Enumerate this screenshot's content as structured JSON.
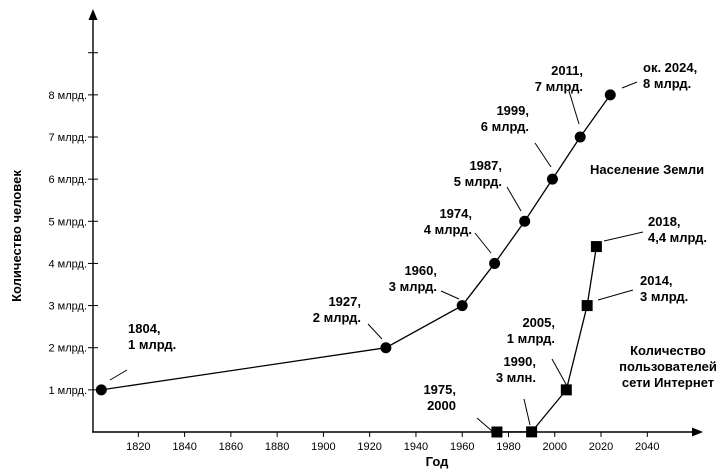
{
  "chart_data": {
    "type": "line",
    "title": "",
    "xlabel": "Год",
    "ylabel": "Количество человек",
    "x_ticks": [
      1820,
      1840,
      1860,
      1880,
      1900,
      1920,
      1940,
      1960,
      1980,
      2000,
      2020,
      2040
    ],
    "y_ticks": [
      {
        "value": 1,
        "label": "1 млрд."
      },
      {
        "value": 2,
        "label": "2 млрд."
      },
      {
        "value": 3,
        "label": "3 млрд."
      },
      {
        "value": 4,
        "label": "4 млрд."
      },
      {
        "value": 5,
        "label": "5 млрд."
      },
      {
        "value": 6,
        "label": "6 млрд."
      },
      {
        "value": 7,
        "label": "7 млрд."
      },
      {
        "value": 8,
        "label": "8 млрд."
      }
    ],
    "xlim": [
      1803,
      2055
    ],
    "ylim": [
      0,
      9.8
    ],
    "grid": false,
    "series": [
      {
        "name": "Население Земли",
        "marker": "circle",
        "points": [
          {
            "x": 1804,
            "y": 1,
            "label": [
              "1804,",
              "1 млрд."
            ]
          },
          {
            "x": 1927,
            "y": 2,
            "label": [
              "1927,",
              "2 млрд."
            ]
          },
          {
            "x": 1960,
            "y": 3,
            "label": [
              "1960,",
              "3 млрд."
            ]
          },
          {
            "x": 1974,
            "y": 4,
            "label": [
              "1974,",
              "4 млрд."
            ]
          },
          {
            "x": 1987,
            "y": 5,
            "label": [
              "1987,",
              "5 млрд."
            ]
          },
          {
            "x": 1999,
            "y": 6,
            "label": [
              "1999,",
              "6 млрд."
            ]
          },
          {
            "x": 2011,
            "y": 7,
            "label": [
              "2011,",
              "7 млрд."
            ]
          },
          {
            "x": 2024,
            "y": 8,
            "label": [
              "ок. 2024,",
              "8 млрд."
            ]
          }
        ]
      },
      {
        "name": "Количество пользователей сети Интернет",
        "name_lines": [
          "Количество",
          "пользователей",
          "сети Интернет"
        ],
        "marker": "square",
        "points": [
          {
            "x": 1975,
            "y": 0,
            "label": [
              "1975,",
              "2000"
            ]
          },
          {
            "x": 1990,
            "y": 0.003,
            "label": [
              "1990,",
              "3 млн."
            ]
          },
          {
            "x": 2005,
            "y": 1,
            "label": [
              "2005,",
              "1 млрд."
            ]
          },
          {
            "x": 2014,
            "y": 3,
            "label": [
              "2014,",
              "3 млрд."
            ]
          },
          {
            "x": 2018,
            "y": 4.4,
            "label": [
              "2018,",
              "4,4 млрд."
            ]
          }
        ]
      }
    ]
  }
}
